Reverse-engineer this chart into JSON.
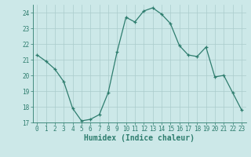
{
  "x": [
    0,
    1,
    2,
    3,
    4,
    5,
    6,
    7,
    8,
    9,
    10,
    11,
    12,
    13,
    14,
    15,
    16,
    17,
    18,
    19,
    20,
    21,
    22,
    23
  ],
  "y": [
    21.3,
    20.9,
    20.4,
    19.6,
    17.9,
    17.1,
    17.2,
    17.5,
    18.9,
    21.5,
    23.7,
    23.4,
    24.1,
    24.3,
    23.9,
    23.3,
    21.9,
    21.3,
    21.2,
    21.8,
    19.9,
    20.0,
    18.9,
    17.8
  ],
  "xlabel": "Humidex (Indice chaleur)",
  "ylim": [
    17,
    24.5
  ],
  "xlim": [
    -0.5,
    23.5
  ],
  "yticks": [
    17,
    18,
    19,
    20,
    21,
    22,
    23,
    24
  ],
  "xticks": [
    0,
    1,
    2,
    3,
    4,
    5,
    6,
    7,
    8,
    9,
    10,
    11,
    12,
    13,
    14,
    15,
    16,
    17,
    18,
    19,
    20,
    21,
    22,
    23
  ],
  "line_color": "#2e7d6e",
  "marker": "+",
  "bg_color": "#cce8e8",
  "grid_color": "#aacccc",
  "tick_color": "#2e7d6e",
  "label_fontsize": 6.5,
  "tick_fontsize": 5.5,
  "xlabel_fontsize": 7.0
}
